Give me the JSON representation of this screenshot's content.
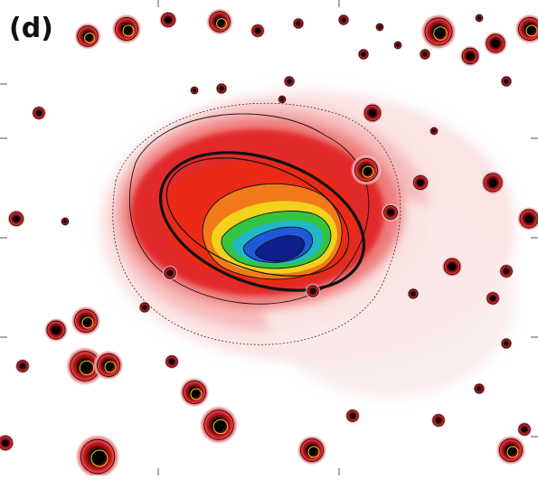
{
  "panel": {
    "label": "(d)"
  },
  "palette": {
    "background": "#ffffff",
    "outer_halo": "#f4c8c8",
    "mid_halo": "#e85050",
    "core_red": "#e4101a",
    "orange": "#f58a1e",
    "yellow": "#f2e21a",
    "green": "#2ec24a",
    "cyan": "#28c0d8",
    "blue": "#1c4cd8",
    "deep_blue": "#0a1a8a",
    "contour": "#111111"
  },
  "icons": {
    "galaxy": "galaxy-image",
    "ellipse": "aperture-ellipse",
    "stars": "point-sources"
  }
}
